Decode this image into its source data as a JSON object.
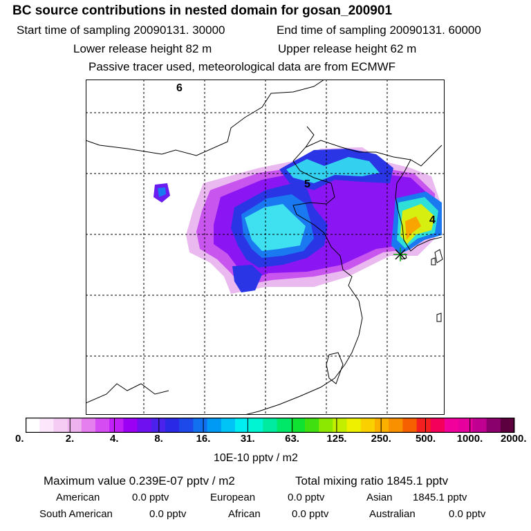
{
  "header": {
    "title": "BC  source contributions in nested domain for gosan_200901",
    "start_time": "Start time of sampling 20090131. 30000",
    "end_time": "End time of sampling 20090131. 60000",
    "lower_height": "Lower release height   82 m",
    "upper_height": "Upper release height   62 m",
    "tracer_note": "Passive tracer used, meteorological data are from ECMWF"
  },
  "map": {
    "markers": [
      "6",
      "5",
      "4"
    ],
    "receptor": "gosan-receptor-star"
  },
  "colorbar": {
    "ticks": [
      "0.",
      "2.",
      "4.",
      "8.",
      "16.",
      "31.",
      "63.",
      "125.",
      "250.",
      "500.",
      "1000.",
      "2000."
    ],
    "unit": "10E-10 pptv / m2",
    "colors": [
      "#ffffff",
      "#fbe6fb",
      "#f4ccf4",
      "#eeb3ee",
      "#e57ff0",
      "#d54cf2",
      "#c01ff5",
      "#9b00f5",
      "#6e10f0",
      "#4a22ec",
      "#2a2ae6",
      "#1d48ea",
      "#1170f0",
      "#0099f4",
      "#00c3f6",
      "#00eef2",
      "#00f5d2",
      "#00eaa0",
      "#00e868",
      "#10e232",
      "#40e010",
      "#8ce800",
      "#c4ee00",
      "#eef000",
      "#fbd000",
      "#fbb000",
      "#f89000",
      "#f66000",
      "#f42020",
      "#f4005a",
      "#f2009c",
      "#e6009e",
      "#c00090",
      "#8a006c",
      "#5c0040"
    ]
  },
  "footer": {
    "max_value": "Maximum value  0.239E-07 pptv / m2",
    "total_mixing": "Total mixing ratio     1845.1 pptv",
    "american": "American",
    "american_val": "0.0 pptv",
    "european": "European",
    "european_val": "0.0 pptv",
    "asian": "Asian",
    "asian_val": "1845.1 pptv",
    "south_american": "South American",
    "south_american_val": "0.0 pptv",
    "african": "African",
    "african_val": "0.0 pptv",
    "australian": "Australian",
    "australian_val": "0.0 pptv"
  }
}
